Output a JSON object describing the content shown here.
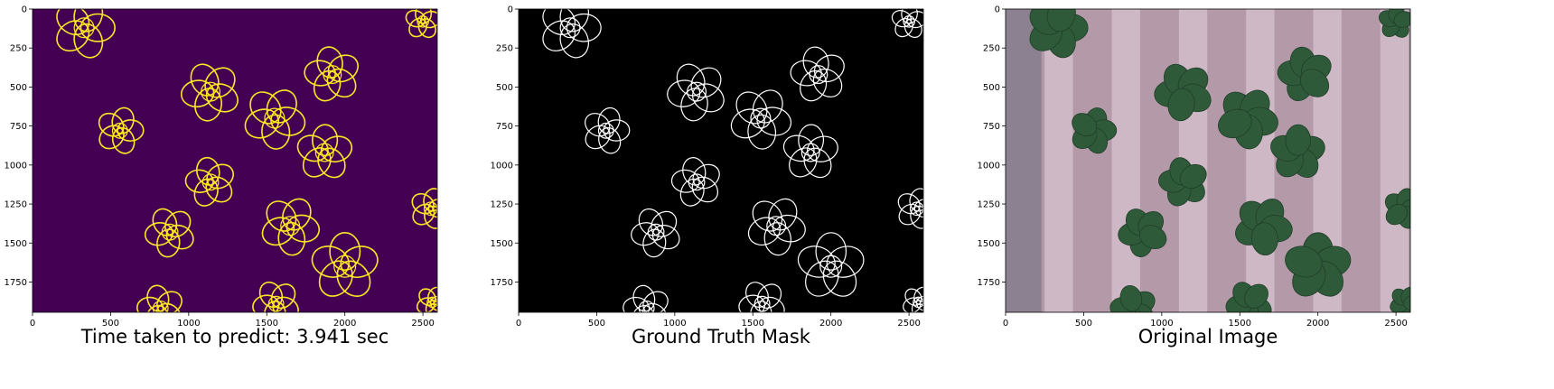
{
  "panels": [
    {
      "id": "prediction",
      "caption": "Time taken to predict: 3.941 sec",
      "bg_color": "#440154",
      "outline_color": "#fde725",
      "x_ticks": [
        0,
        500,
        1000,
        1500,
        2000,
        2500
      ],
      "y_ticks": [
        0,
        250,
        500,
        750,
        1000,
        1250,
        1500,
        1750
      ]
    },
    {
      "id": "ground-truth",
      "caption": "Ground Truth Mask",
      "bg_color": "#000000",
      "outline_color": "#ffffff",
      "x_ticks": [
        0,
        500,
        1000,
        1500,
        2000,
        2500
      ],
      "y_ticks": [
        0,
        250,
        500,
        750,
        1000,
        1250,
        1500,
        1750
      ]
    },
    {
      "id": "original",
      "caption": "Original Image",
      "bg_color": "#b49aa8",
      "plant_color": "#2f5a3a",
      "x_ticks": [
        0,
        500,
        1000,
        1500,
        2000,
        2500
      ],
      "y_ticks": [
        0,
        250,
        500,
        750,
        1000,
        1250,
        1500,
        1750
      ]
    }
  ],
  "image_extent": {
    "width": 2592,
    "height": 1944
  },
  "plants": [
    {
      "x": 330,
      "y": 120,
      "r": 210
    },
    {
      "x": 2500,
      "y": 80,
      "r": 120
    },
    {
      "x": 1920,
      "y": 420,
      "r": 190
    },
    {
      "x": 1140,
      "y": 530,
      "r": 200
    },
    {
      "x": 1550,
      "y": 700,
      "r": 210
    },
    {
      "x": 560,
      "y": 780,
      "r": 160
    },
    {
      "x": 1870,
      "y": 920,
      "r": 190
    },
    {
      "x": 1140,
      "y": 1110,
      "r": 170
    },
    {
      "x": 880,
      "y": 1430,
      "r": 170
    },
    {
      "x": 1650,
      "y": 1390,
      "r": 200
    },
    {
      "x": 2550,
      "y": 1280,
      "r": 140
    },
    {
      "x": 2000,
      "y": 1650,
      "r": 230
    },
    {
      "x": 820,
      "y": 1920,
      "r": 160
    },
    {
      "x": 1560,
      "y": 1890,
      "r": 160
    },
    {
      "x": 2560,
      "y": 1880,
      "r": 110
    }
  ]
}
